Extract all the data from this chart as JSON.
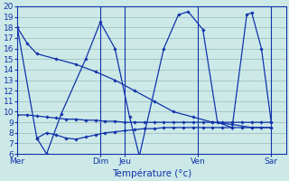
{
  "background_color": "#cce9e8",
  "grid_color": "#99bbbb",
  "line_color": "#1133aa",
  "xlabel": "Température (°c)",
  "xlabel_fontsize": 7.5,
  "tick_label_fontsize": 6.5,
  "ylim": [
    6,
    20
  ],
  "yticks": [
    6,
    7,
    8,
    9,
    10,
    11,
    12,
    13,
    14,
    15,
    16,
    17,
    18,
    19,
    20
  ],
  "x_day_labels": [
    "Mer",
    "Dim",
    "Jeu",
    "Ven",
    "Sar"
  ],
  "day_positions": [
    0,
    8.5,
    11.0,
    18.5,
    26.0
  ],
  "xlim": [
    0,
    27.5
  ],
  "line1_x": [
    0,
    1,
    2,
    4,
    6,
    8,
    10,
    12,
    14,
    16,
    18,
    20,
    22,
    24,
    26
  ],
  "line1_y": [
    18,
    16.5,
    15.5,
    15.0,
    14.5,
    13.8,
    13.0,
    12.0,
    11.0,
    10.0,
    9.5,
    9.0,
    8.8,
    8.5,
    8.5
  ],
  "line2_x": [
    0,
    2,
    3,
    4.5,
    7.0,
    8.5,
    10.0,
    11.5,
    12.5,
    15.0,
    16.5,
    17.5,
    19.0,
    20.5,
    22.0,
    23.5,
    24.0,
    25.0,
    26.0
  ],
  "line2_y": [
    18,
    7.5,
    6.0,
    9.8,
    15.0,
    18.5,
    16.0,
    9.5,
    5.8,
    16.0,
    19.2,
    19.5,
    17.8,
    9.0,
    8.5,
    19.2,
    19.4,
    16.0,
    9.0
  ],
  "line3_x": [
    0,
    1,
    2,
    3,
    4,
    5,
    6,
    7,
    8,
    9,
    10,
    11,
    12,
    13,
    14,
    15,
    16,
    17,
    18,
    19,
    20,
    21,
    22,
    23,
    24,
    25,
    26
  ],
  "line3_y": [
    9.7,
    9.7,
    9.6,
    9.5,
    9.4,
    9.3,
    9.3,
    9.2,
    9.2,
    9.1,
    9.1,
    9.0,
    9.0,
    9.0,
    9.0,
    9.0,
    9.0,
    9.0,
    9.0,
    9.0,
    9.0,
    9.0,
    9.0,
    9.0,
    9.0,
    9.0,
    9.0
  ],
  "line4_x": [
    2,
    3,
    4,
    5,
    6,
    7,
    8,
    9,
    10,
    11,
    12,
    13,
    14,
    15,
    16,
    17,
    18,
    19,
    20,
    21,
    22,
    23,
    24,
    25,
    26
  ],
  "line4_y": [
    7.5,
    8.0,
    7.8,
    7.5,
    7.4,
    7.6,
    7.8,
    8.0,
    8.1,
    8.2,
    8.3,
    8.4,
    8.4,
    8.5,
    8.5,
    8.5,
    8.5,
    8.5,
    8.5,
    8.5,
    8.5,
    8.5,
    8.5,
    8.5,
    8.5
  ]
}
